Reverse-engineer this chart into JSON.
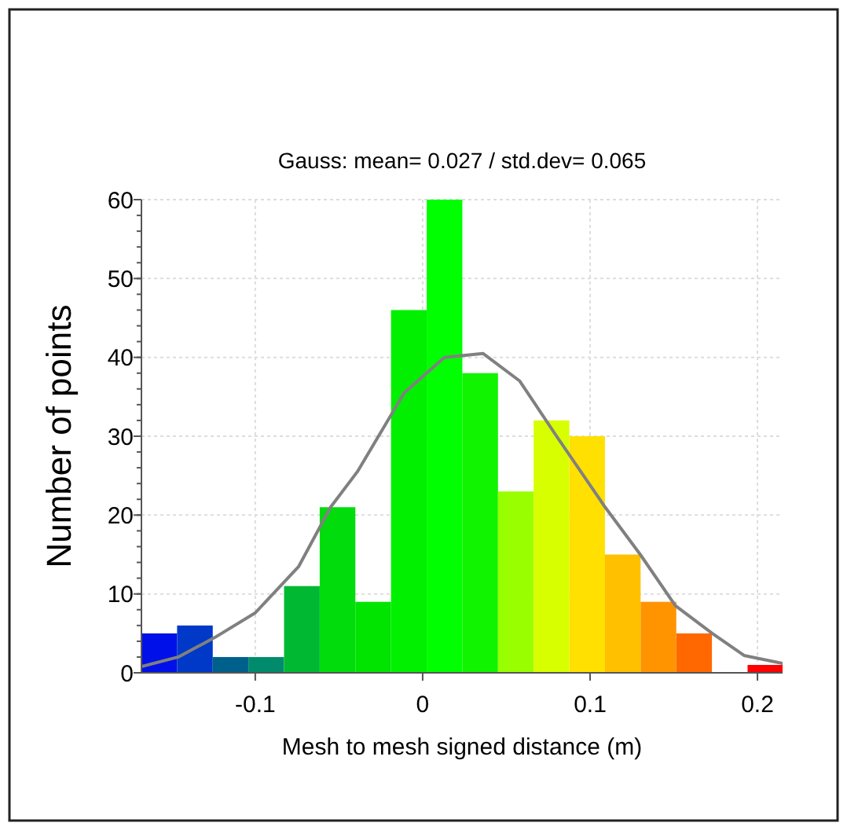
{
  "chart_data": {
    "type": "histogram",
    "title": "Gauss: mean= 0.027 / std.dev= 0.065",
    "xlabel": "Mesh to mesh signed distance (m)",
    "ylabel": "Number of points",
    "bins": [
      -0.168,
      -0.1467,
      -0.1254,
      -0.1041,
      -0.0828,
      -0.0615,
      -0.0402,
      -0.0189,
      0.0024,
      0.0237,
      0.045,
      0.0663,
      0.0876,
      0.1089,
      0.1302,
      0.1515,
      0.1728,
      0.1941,
      0.2154
    ],
    "series": [
      {
        "values": [
          5,
          6,
          2,
          2,
          11,
          21,
          9,
          46,
          60,
          38,
          23,
          32,
          30,
          15,
          9,
          5,
          0,
          1
        ],
        "colors": [
          "#0010e8",
          "#0038c8",
          "#00608c",
          "#008c6c",
          "#00b832",
          "#00dc0c",
          "#00e400",
          "#00f000",
          "#00ff00",
          "#10f400",
          "#99ff00",
          "#d8ff00",
          "#ffe000",
          "#ffc000",
          "#ff9400",
          "#ff6800",
          "#ff4000",
          "#ff0000"
        ]
      },
      {
        "type": "line",
        "color": "#808080",
        "x": [
          -0.168,
          -0.146,
          -0.124,
          -0.1,
          -0.074,
          -0.055,
          -0.039,
          -0.011,
          0.013,
          0.036,
          0.058,
          0.08,
          0.109,
          0.13,
          0.151,
          0.173,
          0.192,
          0.215
        ],
        "values": [
          0.8,
          2,
          4.5,
          7.6,
          13.5,
          21,
          25.5,
          35.5,
          40,
          40.5,
          37,
          30,
          21,
          15,
          8.5,
          5,
          2.2,
          1.2
        ]
      }
    ],
    "xlim": [
      -0.168,
      0.215
    ],
    "ylim": [
      0,
      60
    ],
    "xticks": [
      -0.1,
      0,
      0.1,
      0.2
    ],
    "yticks": [
      0,
      10,
      20,
      30,
      40,
      50,
      60
    ],
    "grid": true
  }
}
